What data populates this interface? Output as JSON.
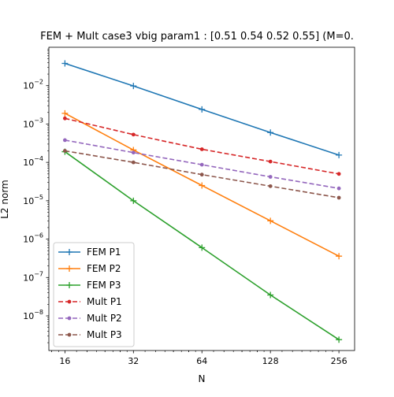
{
  "chart_data": {
    "type": "line",
    "title": "FEM + Mult case3 vbig param1 : [0.51 0.54 0.52 0.55] (M=0.",
    "xlabel": "N",
    "ylabel": "L2 norm",
    "xscale": "log2",
    "yscale": "log10",
    "x": [
      16,
      32,
      64,
      128,
      256
    ],
    "xticks": [
      16,
      32,
      64,
      128,
      256
    ],
    "xtick_labels": [
      "16",
      "32",
      "64",
      "128",
      "256"
    ],
    "xlim": [
      13.6,
      300
    ],
    "ylim": [
      1.25e-09,
      0.1
    ],
    "yticks_exp": [
      -8,
      -7,
      -6,
      -5,
      -4,
      -3,
      -2
    ],
    "ytick_base": "10",
    "legend_position": "lower left",
    "grid": false,
    "series": [
      {
        "name": "FEM P1",
        "color": "#1f77b4",
        "style": "solid",
        "marker": "plus",
        "values": [
          0.038,
          0.0098,
          0.0024,
          0.0006,
          0.000155
        ]
      },
      {
        "name": "FEM P2",
        "color": "#ff7f0e",
        "style": "solid",
        "marker": "plus",
        "values": [
          0.0019,
          0.00021,
          2.5e-05,
          3e-06,
          3.6e-07
        ]
      },
      {
        "name": "FEM P3",
        "color": "#2ca02c",
        "style": "solid",
        "marker": "plus",
        "values": [
          0.00019,
          1e-05,
          6e-07,
          3.5e-08,
          2.4e-09
        ]
      },
      {
        "name": "Mult P1",
        "color": "#d62728",
        "style": "dashed",
        "marker": "dot",
        "values": [
          0.0014,
          0.00053,
          0.00022,
          0.000105,
          5e-05
        ]
      },
      {
        "name": "Mult P2",
        "color": "#9467bd",
        "style": "dashed",
        "marker": "dot",
        "values": [
          0.00038,
          0.00018,
          8.7e-05,
          4.2e-05,
          2.1e-05
        ]
      },
      {
        "name": "Mult P3",
        "color": "#8c564b",
        "style": "dashed",
        "marker": "dot",
        "values": [
          0.0002,
          0.0001,
          4.8e-05,
          2.4e-05,
          1.2e-05
        ]
      }
    ]
  }
}
